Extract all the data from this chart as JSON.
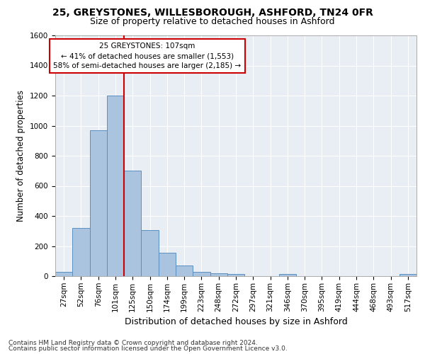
{
  "title1": "25, GREYSTONES, WILLESBOROUGH, ASHFORD, TN24 0FR",
  "title2": "Size of property relative to detached houses in Ashford",
  "xlabel": "Distribution of detached houses by size in Ashford",
  "ylabel": "Number of detached properties",
  "footer1": "Contains HM Land Registry data © Crown copyright and database right 2024.",
  "footer2": "Contains public sector information licensed under the Open Government Licence v3.0.",
  "bar_labels": [
    "27sqm",
    "52sqm",
    "76sqm",
    "101sqm",
    "125sqm",
    "150sqm",
    "174sqm",
    "199sqm",
    "223sqm",
    "248sqm",
    "272sqm",
    "297sqm",
    "321sqm",
    "346sqm",
    "370sqm",
    "395sqm",
    "419sqm",
    "444sqm",
    "468sqm",
    "493sqm",
    "517sqm"
  ],
  "bar_values": [
    30,
    320,
    970,
    1200,
    700,
    305,
    155,
    70,
    30,
    20,
    15,
    0,
    0,
    15,
    0,
    0,
    0,
    0,
    0,
    0,
    15
  ],
  "bar_color": "#aac4e0",
  "bar_edge_color": "#5a8fc0",
  "vline_color": "#cc0000",
  "annotation_text": "25 GREYSTONES: 107sqm\n← 41% of detached houses are smaller (1,553)\n58% of semi-detached houses are larger (2,185) →",
  "annotation_box_color": "#ffffff",
  "annotation_box_edge": "#cc0000",
  "ylim": [
    0,
    1600
  ],
  "yticks": [
    0,
    200,
    400,
    600,
    800,
    1000,
    1200,
    1400,
    1600
  ],
  "background_color": "#e8eef4",
  "grid_color": "#ffffff",
  "title1_fontsize": 10,
  "title2_fontsize": 9,
  "xlabel_fontsize": 9,
  "ylabel_fontsize": 8.5,
  "tick_fontsize": 7.5,
  "footer_fontsize": 6.5,
  "annot_fontsize": 7.5
}
